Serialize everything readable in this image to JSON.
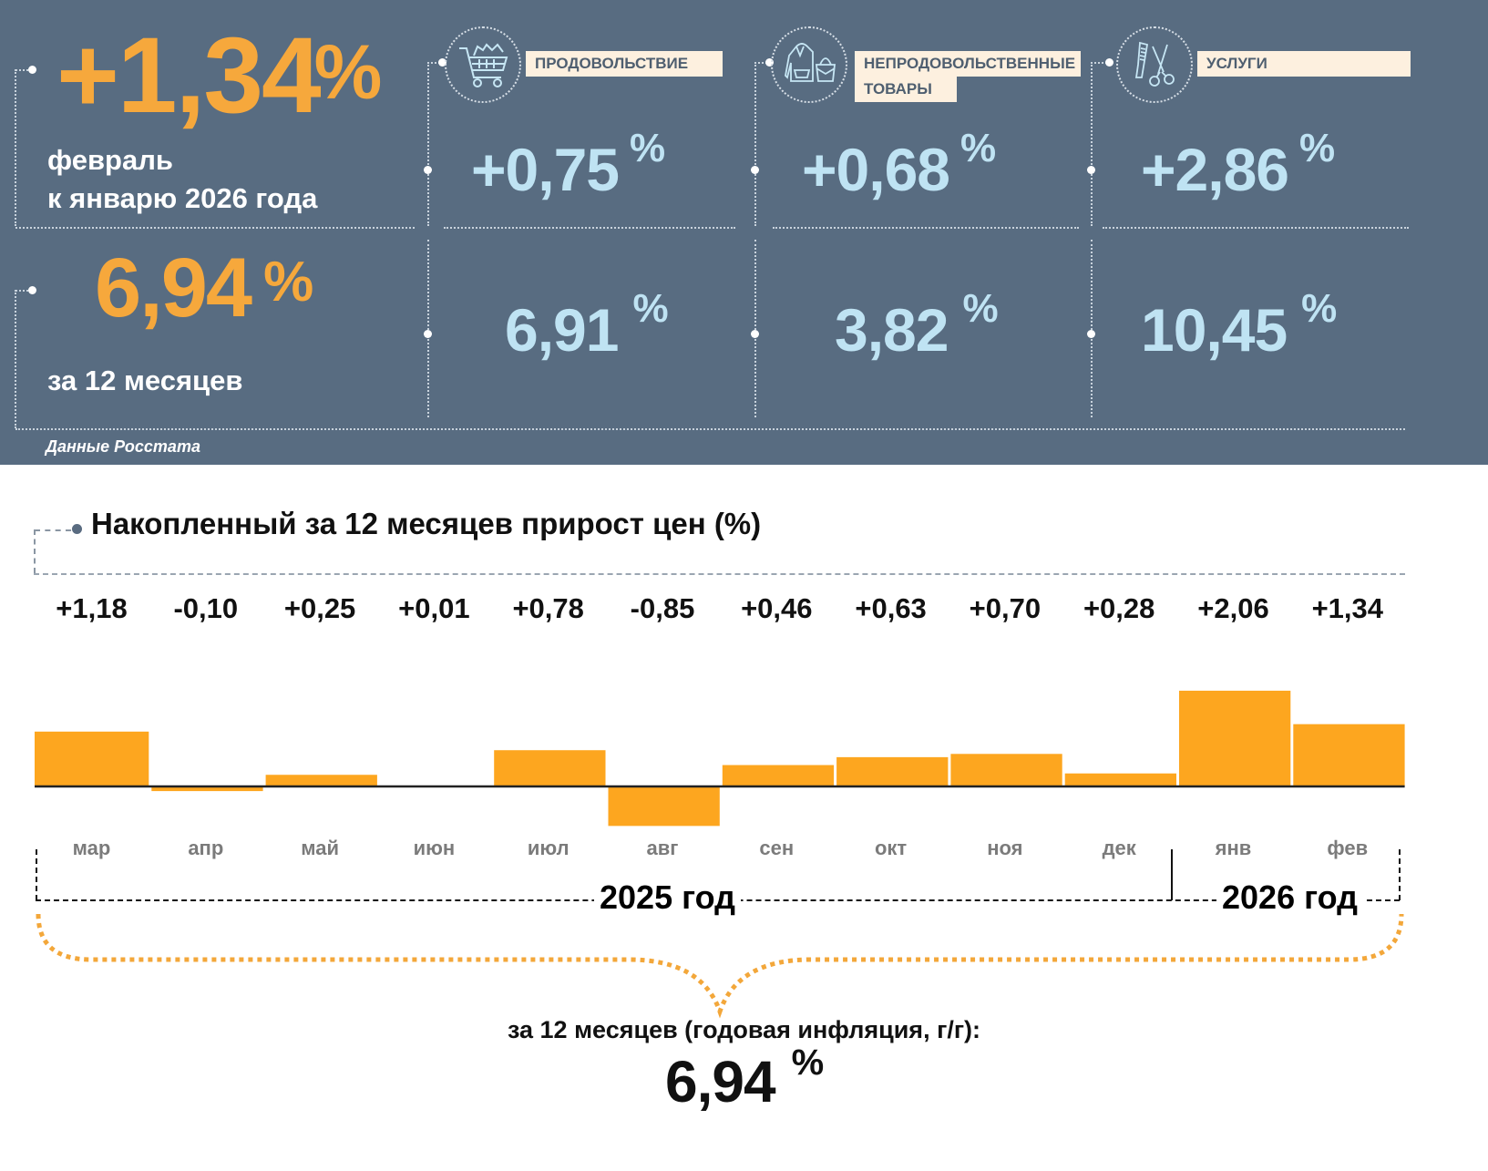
{
  "header": {
    "monthly": {
      "value": "+1,34",
      "unit": "%",
      "label_line1": "февраль",
      "label_line2": "к январю 2026 года"
    },
    "annual": {
      "value": "6,94",
      "unit": "%",
      "label": "за 12 месяцев"
    },
    "categories": [
      {
        "name": "ПРОДОВОЛЬСТВИЕ",
        "icon": "shopping-cart-icon",
        "monthly": "+0,75",
        "annual": "6,91",
        "unit": "%"
      },
      {
        "name_line1": "НЕПРОДОВОЛЬСТВЕННЫЕ",
        "name_line2": "ТОВАРЫ",
        "icon": "clothing-bag-icon",
        "monthly": "+0,68",
        "annual": "3,82",
        "unit": "%"
      },
      {
        "name": "УСЛУГИ",
        "icon": "comb-scissors-icon",
        "monthly": "+2,86",
        "annual": "10,45",
        "unit": "%"
      }
    ],
    "source": "Данные Росстата"
  },
  "colors": {
    "panel": "#586c81",
    "accent_orange": "#f6a83c",
    "accent_blue": "#bfe3f3",
    "bar": "#fda61f",
    "badge": "#fdf0df"
  },
  "chart_data": {
    "type": "bar",
    "title": "Накопленный за 12 месяцев прирост цен (%)",
    "categories": [
      "мар",
      "апр",
      "май",
      "июн",
      "июл",
      "авг",
      "сен",
      "окт",
      "ноя",
      "дек",
      "янв",
      "фев"
    ],
    "values": [
      1.18,
      -0.1,
      0.25,
      0.01,
      0.78,
      -0.85,
      0.46,
      0.63,
      0.7,
      0.28,
      2.06,
      1.34
    ],
    "value_labels": [
      "+1,18",
      "-0,10",
      "+0,25",
      "+0,01",
      "+0,78",
      "-0,85",
      "+0,46",
      "+0,63",
      "+0,70",
      "+0,28",
      "+2,06",
      "+1,34"
    ],
    "year_groups": [
      {
        "label": "2025 год",
        "months": 10
      },
      {
        "label": "2026 год",
        "months": 2
      }
    ],
    "xlabel": "",
    "ylabel": "",
    "ylim": [
      -0.85,
      2.06
    ],
    "grid": false,
    "legend": "none"
  },
  "summary": {
    "caption": "за 12 месяцев (годовая инфляция, г/г):",
    "value": "6,94",
    "unit": "%"
  }
}
